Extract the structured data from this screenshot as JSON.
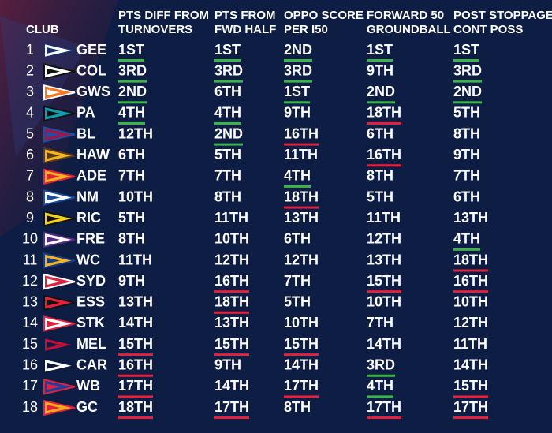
{
  "header": {
    "club": "CLUB",
    "columns": [
      [
        "PTS DIFF FROM",
        "TURNOVERS"
      ],
      [
        "PTS FROM",
        "FWD HALF"
      ],
      [
        "OPPO SCORE",
        "PER I50"
      ],
      [
        "FORWARD 50",
        "GROUNDBALL"
      ],
      [
        "POST STOPPAGE",
        "CONT POSS"
      ]
    ]
  },
  "highlight": {
    "top": 4,
    "top_color": "#3bb54a",
    "bottom": 15,
    "bottom_color": "#e3213d"
  },
  "table": {
    "rows": [
      [
        "1",
        "GEE",
        "1ST",
        "1ST",
        "2ND",
        "1ST",
        "1ST"
      ],
      [
        "2",
        "COL",
        "3RD",
        "3RD",
        "3RD",
        "9TH",
        "3RD"
      ],
      [
        "3",
        "GWS",
        "2ND",
        "6TH",
        "1ST",
        "2ND",
        "2ND"
      ],
      [
        "4",
        "PA",
        "4TH",
        "4TH",
        "9TH",
        "18TH",
        "5TH"
      ],
      [
        "5",
        "BL",
        "12TH",
        "2ND",
        "16TH",
        "6TH",
        "8TH"
      ],
      [
        "6",
        "HAW",
        "6TH",
        "5TH",
        "11TH",
        "16TH",
        "9TH"
      ],
      [
        "7",
        "ADE",
        "7TH",
        "7TH",
        "4TH",
        "8TH",
        "7TH"
      ],
      [
        "8",
        "NM",
        "10TH",
        "8TH",
        "18TH",
        "5TH",
        "6TH"
      ],
      [
        "9",
        "RIC",
        "5TH",
        "11TH",
        "13TH",
        "11TH",
        "13TH"
      ],
      [
        "10",
        "FRE",
        "8TH",
        "10TH",
        "6TH",
        "12TH",
        "4TH"
      ],
      [
        "11",
        "WC",
        "11TH",
        "12TH",
        "12TH",
        "13TH",
        "18TH"
      ],
      [
        "12",
        "SYD",
        "9TH",
        "16TH",
        "7TH",
        "15TH",
        "16TH"
      ],
      [
        "13",
        "ESS",
        "13TH",
        "18TH",
        "5TH",
        "10TH",
        "10TH"
      ],
      [
        "14",
        "STK",
        "14TH",
        "13TH",
        "10TH",
        "7TH",
        "12TH"
      ],
      [
        "15",
        "MEL",
        "15TH",
        "15TH",
        "15TH",
        "14TH",
        "11TH"
      ],
      [
        "16",
        "CAR",
        "16TH",
        "9TH",
        "14TH",
        "3RD",
        "14TH"
      ],
      [
        "17",
        "WB",
        "17TH",
        "14TH",
        "17TH",
        "4TH",
        "15TH"
      ],
      [
        "18",
        "GC",
        "18TH",
        "17TH",
        "8TH",
        "17TH",
        "17TH"
      ]
    ]
  }
}
